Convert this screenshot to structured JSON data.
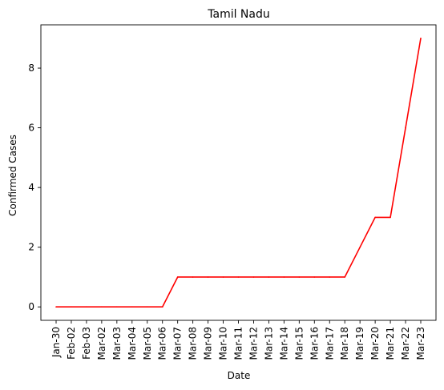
{
  "chart_data": {
    "type": "line",
    "title": "Tamil Nadu",
    "xlabel": "Date",
    "ylabel": "Confirmed Cases",
    "categories": [
      "Jan-30",
      "Feb-02",
      "Feb-03",
      "Mar-02",
      "Mar-03",
      "Mar-04",
      "Mar-05",
      "Mar-06",
      "Mar-07",
      "Mar-08",
      "Mar-09",
      "Mar-10",
      "Mar-11",
      "Mar-12",
      "Mar-13",
      "Mar-14",
      "Mar-15",
      "Mar-16",
      "Mar-17",
      "Mar-18",
      "Mar-19",
      "Mar-20",
      "Mar-21",
      "Mar-22",
      "Mar-23"
    ],
    "series": [
      {
        "values": [
          0,
          0,
          0,
          0,
          0,
          0,
          0,
          0,
          1,
          1,
          1,
          1,
          1,
          1,
          1,
          1,
          1,
          1,
          1,
          1,
          2,
          3,
          3,
          6,
          9
        ],
        "color": "#ff0000"
      }
    ],
    "ylim": [
      -0.45,
      9.45
    ],
    "yticks": [
      0,
      2,
      4,
      6,
      8
    ],
    "grid": false,
    "legend": "none"
  }
}
